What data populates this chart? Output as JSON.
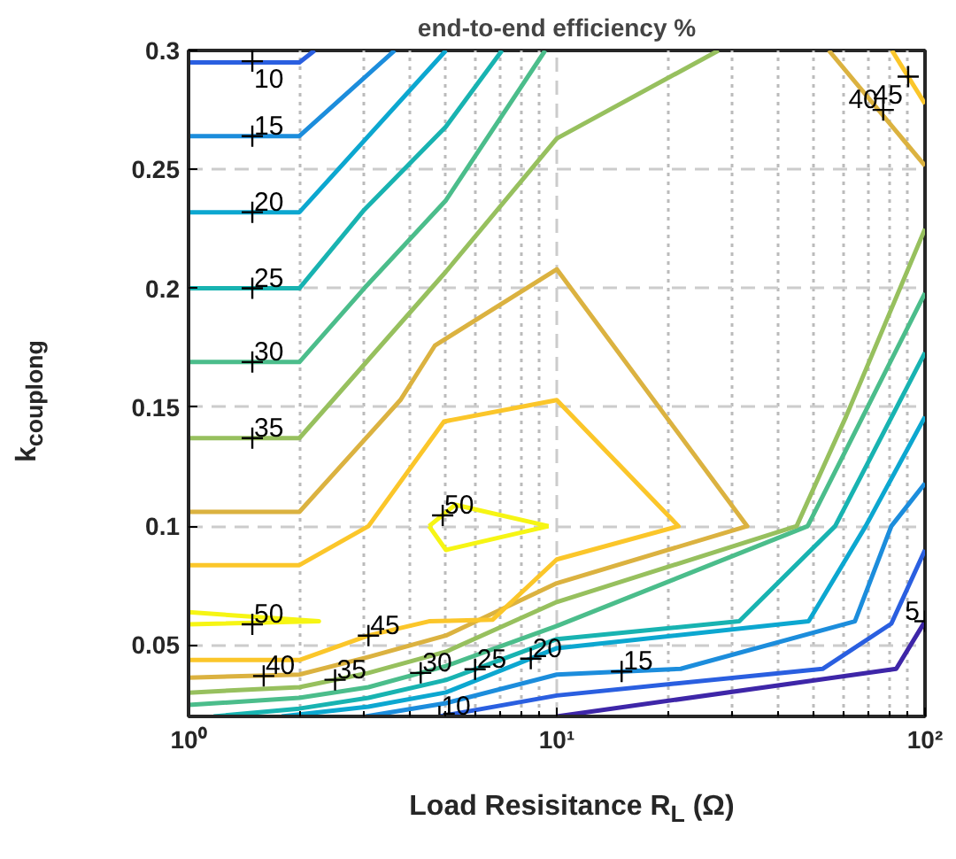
{
  "chart_data": {
    "type": "line",
    "title": "end-to-end efficiency %",
    "xlabel": "Load Resisitance R$_{L}$ (Ω)",
    "ylabel": "k$_{couplong}$",
    "log": "x",
    "grid": true,
    "line_style": "solid",
    "marker": "none",
    "xlim": [
      1,
      100
    ],
    "xticks": [
      {
        "value": 1,
        "label": "10⁰"
      },
      {
        "value": 10,
        "label": "10¹"
      },
      {
        "value": 100,
        "label": "10²"
      }
    ],
    "ylim": [
      0.02,
      0.3
    ],
    "yticks": [
      0.05,
      0.1,
      0.15,
      0.2,
      0.25,
      0.3
    ],
    "series": [
      {
        "color": "#3e26a8",
        "x": [
          10,
          83.5,
          100
        ],
        "values": [
          0.02,
          0.04,
          0.06
        ]
      },
      {
        "color": "#2a5fe0",
        "x": [
          4.8,
          10,
          52.7,
          81,
          100
        ],
        "values": [
          0.02,
          0.0288,
          0.04,
          0.059,
          0.09
        ]
      },
      {
        "color": "#2a5fe0",
        "x": [
          1,
          2,
          2.2
        ],
        "values": [
          0.295,
          0.295,
          0.3
        ]
      },
      {
        "color": "#1c8ddc",
        "x": [
          3.03,
          5,
          10,
          21.7,
          64.5,
          81,
          100
        ],
        "values": [
          0.02,
          0.0256,
          0.0376,
          0.04,
          0.06,
          0.1,
          0.118
        ]
      },
      {
        "color": "#1c8ddc",
        "x": [
          1,
          2,
          3.63
        ],
        "values": [
          0.264,
          0.264,
          0.3
        ]
      },
      {
        "color": "#0ca7d0",
        "x": [
          1.79,
          3.08,
          5,
          10,
          48.3,
          69,
          100
        ],
        "values": [
          0.02,
          0.0241,
          0.0301,
          0.0487,
          0.06,
          0.1,
          0.146
        ]
      },
      {
        "color": "#0ca7d0",
        "x": [
          1,
          2,
          5
        ],
        "values": [
          0.232,
          0.232,
          0.3
        ]
      },
      {
        "color": "#18b3b1",
        "x": [
          1.17,
          2,
          3.08,
          5,
          10,
          31.3,
          57,
          100
        ],
        "values": [
          0.02,
          0.0233,
          0.0278,
          0.0353,
          0.0525,
          0.06,
          0.1,
          0.173
        ]
      },
      {
        "color": "#18b3b1",
        "x": [
          1,
          2,
          3,
          5,
          7.1
        ],
        "values": [
          0.2,
          0.2,
          0.233,
          0.268,
          0.3
        ]
      },
      {
        "color": "#4bbd8b",
        "x": [
          1,
          2,
          3.08,
          5,
          10,
          48,
          100
        ],
        "values": [
          0.0248,
          0.0278,
          0.0323,
          0.0412,
          0.058,
          0.1,
          0.198
        ]
      },
      {
        "color": "#4bbd8b",
        "x": [
          1,
          2,
          3,
          5,
          9.3
        ],
        "values": [
          0.169,
          0.169,
          0.2,
          0.237,
          0.3
        ]
      },
      {
        "color": "#97c05e",
        "x": [
          1,
          2,
          3.08,
          5,
          10,
          44.8,
          61,
          100
        ],
        "values": [
          0.03,
          0.0323,
          0.0383,
          0.0472,
          0.0681,
          0.1,
          0.146,
          0.225
        ]
      },
      {
        "color": "#97c05e",
        "x": [
          1,
          2,
          5,
          10,
          27.5
        ],
        "values": [
          0.137,
          0.137,
          0.207,
          0.263,
          0.3
        ]
      },
      {
        "color": "#dbb240",
        "x": [
          1,
          2,
          3.76,
          4.67,
          10,
          32.9,
          10,
          5,
          3.08,
          2,
          1
        ],
        "values": [
          0.106,
          0.106,
          0.153,
          0.176,
          0.208,
          0.1,
          0.076,
          0.054,
          0.045,
          0.0376,
          0.0363
        ]
      },
      {
        "color": "#dbb240",
        "x": [
          54.8,
          100
        ],
        "values": [
          0.3,
          0.2515
        ]
      },
      {
        "color": "#fbc62a",
        "x": [
          1,
          2,
          3.08,
          4.94,
          10,
          21.4,
          10,
          6.7,
          4.5,
          3.08,
          2,
          1
        ],
        "values": [
          0.0836,
          0.0836,
          0.1,
          0.144,
          0.153,
          0.1,
          0.086,
          0.0607,
          0.06,
          0.054,
          0.0437,
          0.0437
        ]
      },
      {
        "color": "#fbc62a",
        "x": [
          81.3,
          100
        ],
        "values": [
          0.3,
          0.2776
        ]
      },
      {
        "color": "#f6f514",
        "x": [
          1,
          2.26,
          1
        ],
        "values": [
          0.0638,
          0.06,
          0.0587
        ]
      },
      {
        "color": "#f6f514",
        "x": [
          4.5,
          5.3,
          9.5
        ],
        "values": [
          0.1,
          0.109,
          0.1
        ]
      },
      {
        "color": "#f6f514",
        "x": [
          4.5,
          5.0,
          9.5
        ],
        "values": [
          0.1,
          0.09,
          0.1
        ]
      }
    ],
    "annotations": [
      {
        "text": "10",
        "x": 1.49,
        "y": 0.2955
      },
      {
        "text": "15",
        "x": 1.49,
        "y": 0.264
      },
      {
        "text": "20",
        "x": 1.49,
        "y": 0.232
      },
      {
        "text": "25",
        "x": 1.49,
        "y": 0.2
      },
      {
        "text": "30",
        "x": 1.49,
        "y": 0.169
      },
      {
        "text": "35",
        "x": 1.49,
        "y": 0.137
      },
      {
        "text": "50",
        "x": 4.9,
        "y": 0.1045
      },
      {
        "text": "50",
        "x": 1.49,
        "y": 0.0587
      },
      {
        "text": "45",
        "x": 3.08,
        "y": 0.054
      },
      {
        "text": "40",
        "x": 1.6,
        "y": 0.037
      },
      {
        "text": "35",
        "x": 2.5,
        "y": 0.0354
      },
      {
        "text": "30",
        "x": 4.27,
        "y": 0.0383
      },
      {
        "text": "25",
        "x": 6,
        "y": 0.0398
      },
      {
        "text": "20",
        "x": 8.5,
        "y": 0.0443
      },
      {
        "text": "15",
        "x": 15,
        "y": 0.0389
      },
      {
        "text": "10",
        "x": 4.8,
        "y": 0.02
      },
      {
        "text": "5",
        "x": 100,
        "y": 0.06
      },
      {
        "text": "40",
        "x": 77,
        "y": 0.275
      },
      {
        "text": "45",
        "x": 90,
        "y": 0.289
      }
    ]
  }
}
